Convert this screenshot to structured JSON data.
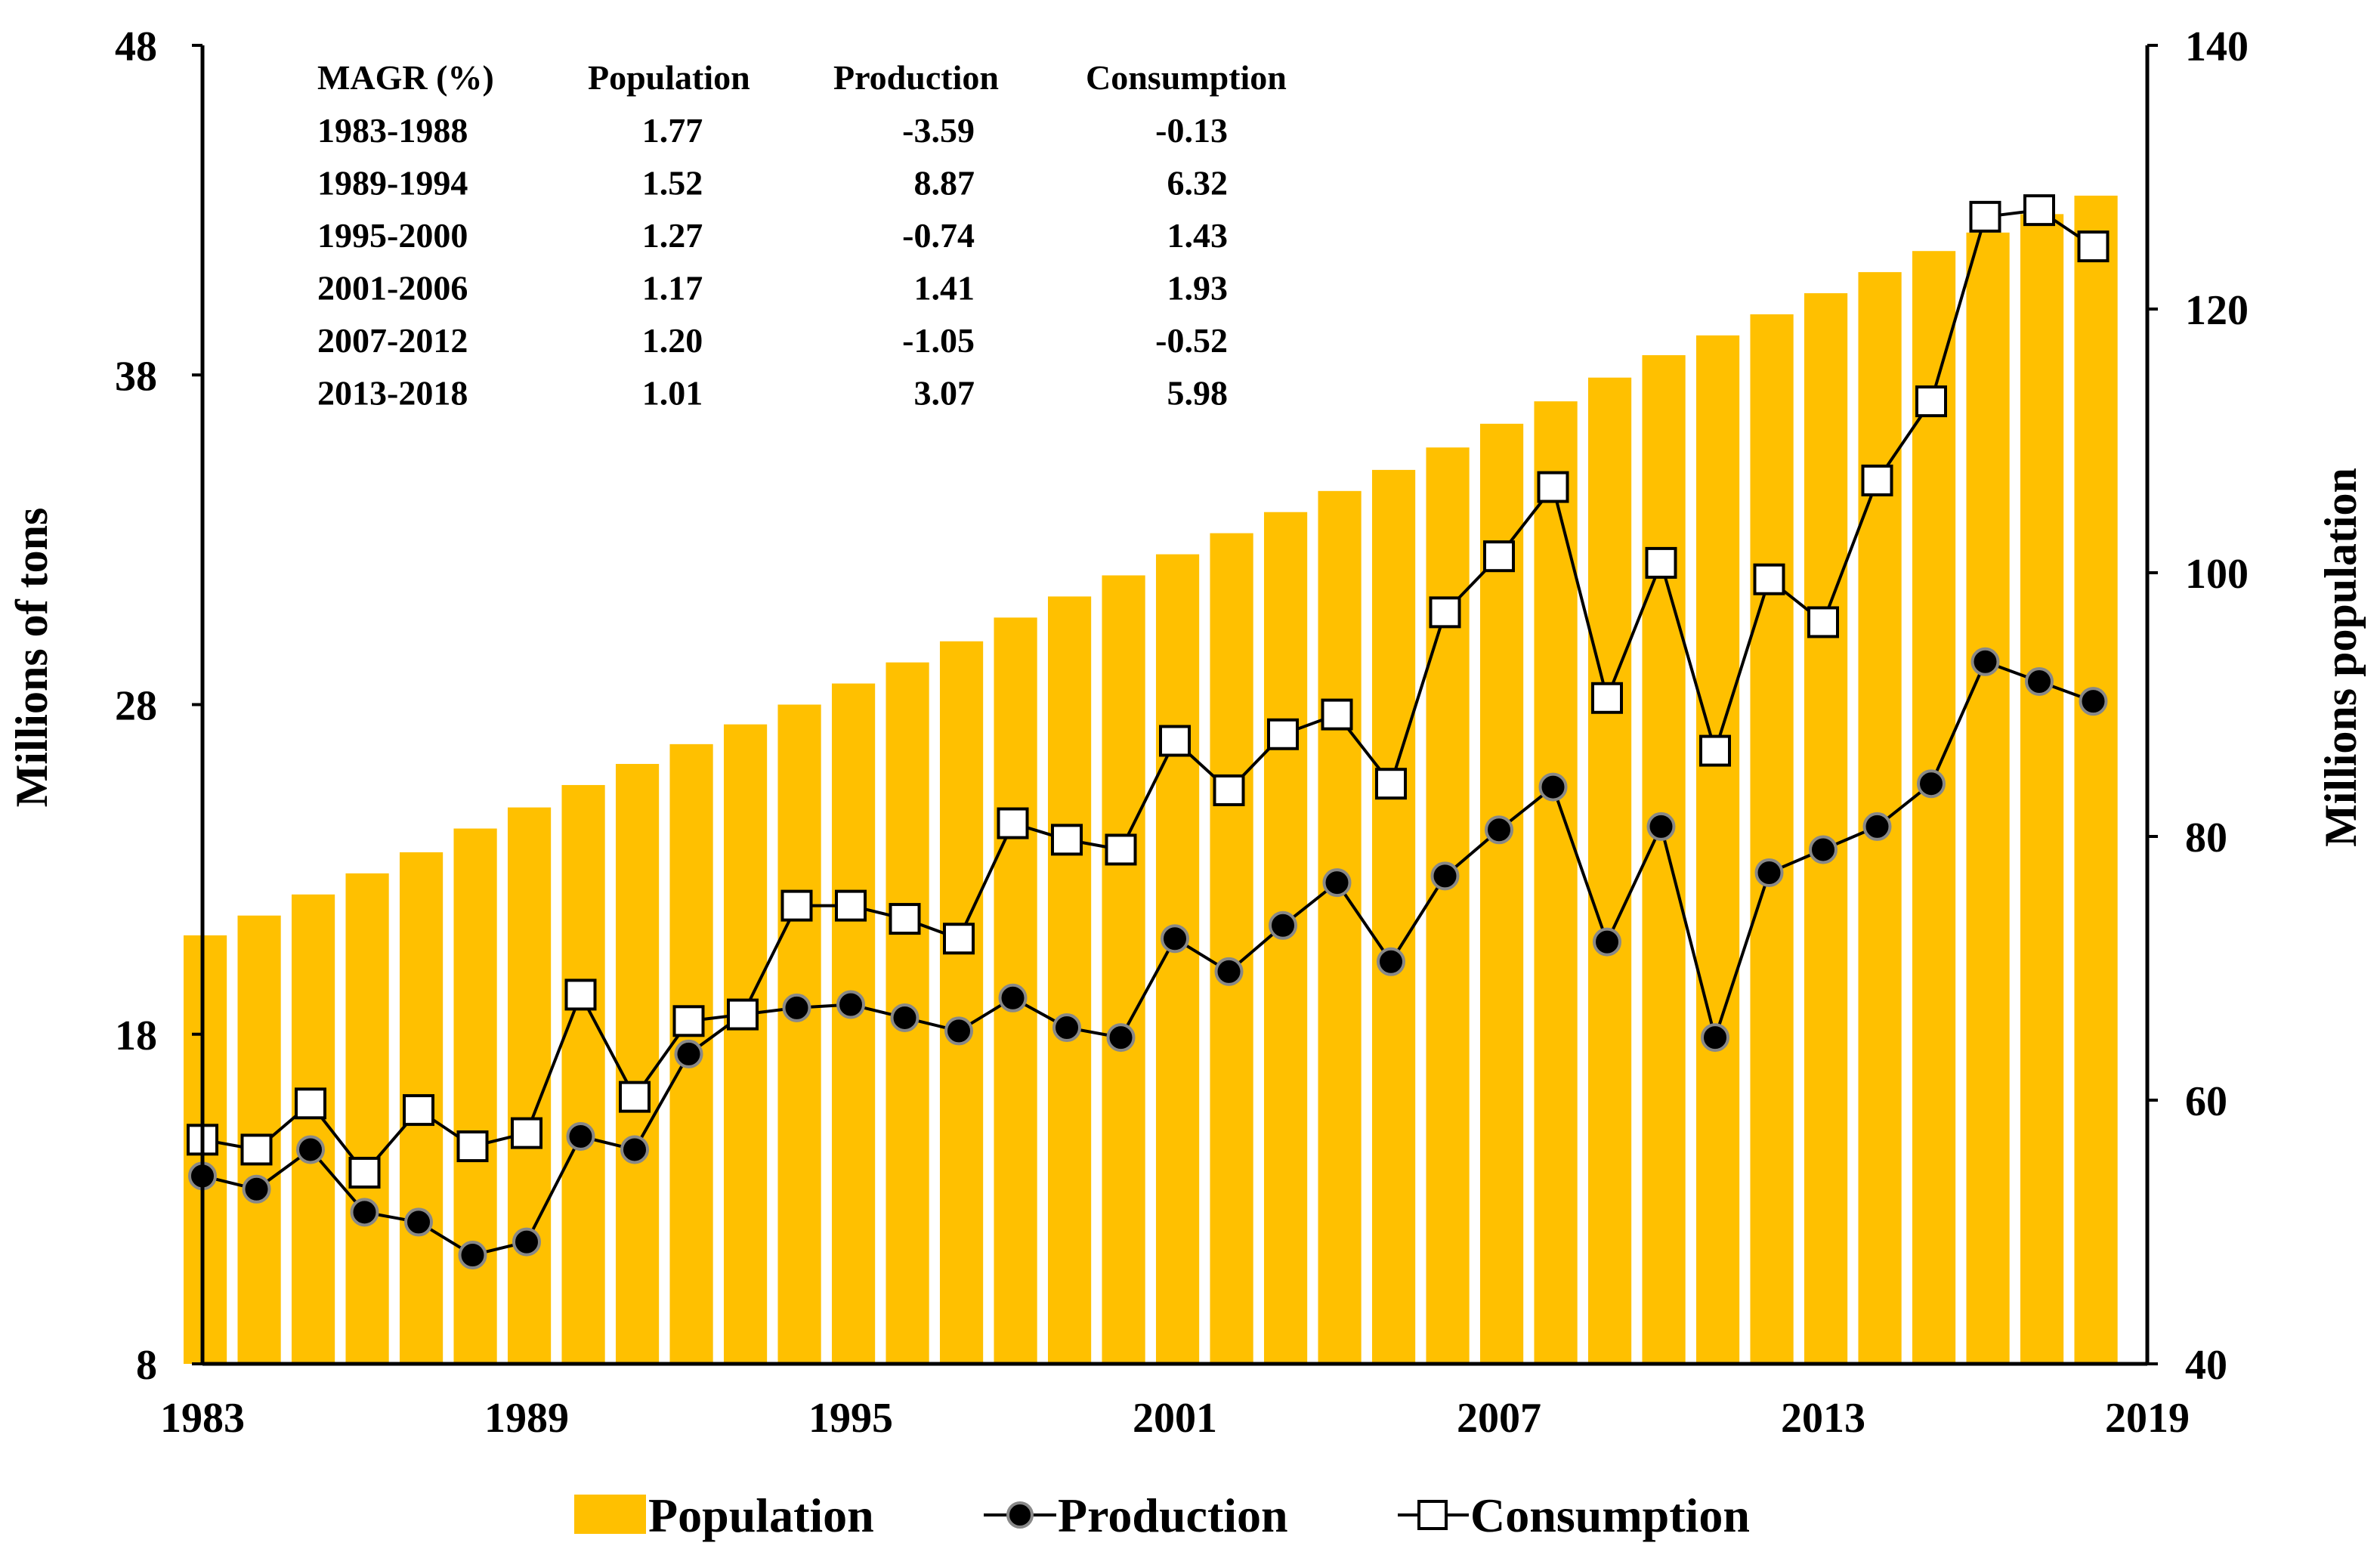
{
  "chart_data": {
    "type": "bar+line",
    "years": [
      1983,
      1984,
      1985,
      1986,
      1987,
      1988,
      1989,
      1990,
      1991,
      1992,
      1993,
      1994,
      1995,
      1996,
      1997,
      1998,
      1999,
      2000,
      2001,
      2002,
      2003,
      2004,
      2005,
      2006,
      2007,
      2008,
      2009,
      2010,
      2011,
      2012,
      2013,
      2014,
      2015,
      2016,
      2017,
      2018
    ],
    "series": [
      {
        "name": "Population",
        "kind": "bar",
        "axis": "right",
        "color": "#FFC000",
        "values": [
          72.5,
          74.0,
          75.6,
          77.2,
          78.8,
          80.6,
          82.2,
          83.9,
          85.5,
          87.0,
          88.5,
          90.0,
          91.6,
          93.2,
          94.8,
          96.6,
          98.2,
          99.8,
          101.4,
          103.0,
          104.6,
          106.2,
          107.8,
          109.5,
          111.3,
          113.0,
          114.8,
          116.5,
          118.0,
          119.6,
          121.2,
          122.8,
          124.4,
          125.8,
          127.2,
          128.6
        ]
      },
      {
        "name": "Production",
        "kind": "line",
        "marker": "filled-circle",
        "axis": "left",
        "values": [
          13.7,
          13.3,
          14.5,
          12.6,
          12.3,
          11.3,
          11.7,
          14.9,
          14.5,
          17.4,
          18.6,
          18.8,
          18.9,
          18.5,
          18.1,
          19.1,
          18.2,
          17.9,
          20.9,
          19.9,
          21.3,
          22.6,
          20.2,
          22.8,
          24.2,
          25.5,
          20.8,
          24.3,
          17.9,
          22.9,
          23.6,
          24.3,
          25.6,
          29.3,
          28.7,
          28.1
        ]
      },
      {
        "name": "Consumption",
        "kind": "line",
        "marker": "open-square",
        "axis": "left",
        "values": [
          14.8,
          14.5,
          15.9,
          13.8,
          15.7,
          14.6,
          15.0,
          19.2,
          16.1,
          18.4,
          18.6,
          21.9,
          21.9,
          21.5,
          20.9,
          24.4,
          23.9,
          23.6,
          26.9,
          25.4,
          27.1,
          27.7,
          25.6,
          30.8,
          32.5,
          34.6,
          28.2,
          32.3,
          26.6,
          31.8,
          30.5,
          34.8,
          37.2,
          42.8,
          43.0,
          41.9
        ]
      }
    ],
    "x_tick_labels": [
      "1983",
      "1989",
      "1995",
      "2001",
      "2007",
      "2013",
      "2019"
    ],
    "x_tick_years": [
      1983,
      1989,
      1995,
      2001,
      2007,
      2013,
      2019
    ],
    "xlim": [
      1983,
      2019
    ],
    "ylabel_left": "Millions of tons",
    "ylim_left": [
      8,
      48
    ],
    "yticks_left": [
      "8",
      "18",
      "28",
      "38",
      "48"
    ],
    "ylabel_right": "Millions population",
    "ylim_right": [
      40,
      140
    ],
    "yticks_right": [
      "40",
      "60",
      "80",
      "100",
      "120",
      "140"
    ],
    "legend": [
      "Population",
      "Production",
      "Consumption"
    ],
    "legend_placement": "bottom-center",
    "grid": false,
    "annotation_table": {
      "header": [
        "MAGR (%)",
        "Population",
        "Production",
        "Consumption"
      ],
      "rows": [
        [
          "1983-1988",
          "1.77",
          "-3.59",
          "-0.13"
        ],
        [
          "1989-1994",
          "1.52",
          "8.87",
          "6.32"
        ],
        [
          "1995-2000",
          "1.27",
          "-0.74",
          "1.43"
        ],
        [
          "2001-2006",
          "1.17",
          "1.41",
          "1.93"
        ],
        [
          "2007-2012",
          "1.20",
          "-1.05",
          "-0.52"
        ],
        [
          "2013-2018",
          "1.01",
          "3.07",
          "5.98"
        ]
      ]
    }
  }
}
